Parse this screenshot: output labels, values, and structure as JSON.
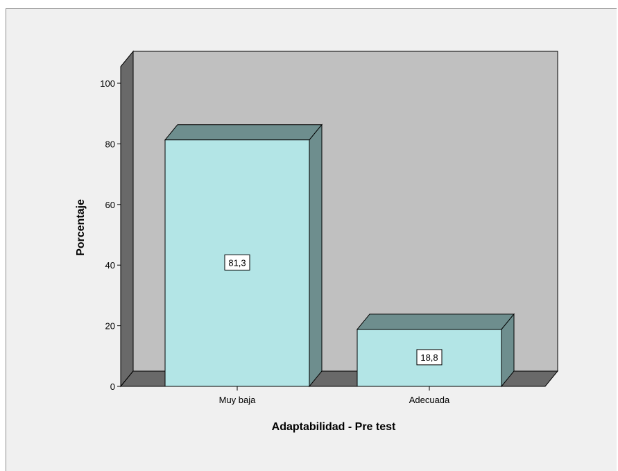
{
  "chart_data": {
    "type": "bar",
    "style": "3d",
    "categories": [
      "Muy baja",
      "Adecuada"
    ],
    "values": [
      81.3,
      18.8
    ],
    "data_labels": [
      "81,3",
      "18,8"
    ],
    "xlabel": "Adaptabilidad - Pre test",
    "ylabel": "Porcentaje",
    "ylim": [
      0,
      100
    ],
    "yticks": [
      0,
      20,
      40,
      60,
      80,
      100
    ],
    "grid": false,
    "colors": {
      "bar_front": "#b3e5e6",
      "bar_top_side": "#6e8e8e",
      "back_wall": "#c0c0c0",
      "side_wall": "#696969",
      "floor": "#696969",
      "background": "#f0f0f0"
    }
  }
}
